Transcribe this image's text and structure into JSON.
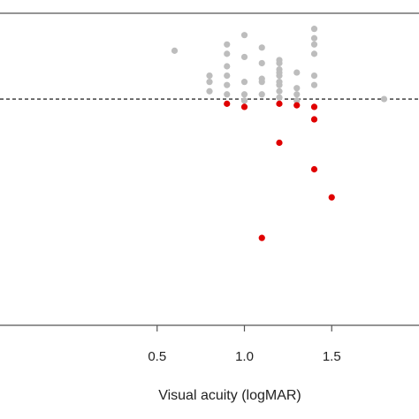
{
  "chart_data": {
    "type": "scatter",
    "title": "",
    "xlabel": "Visual acuity (logMAR)",
    "ylabel": "",
    "xlim": [
      -0.4,
      2.0
    ],
    "ylim": [
      0,
      1
    ],
    "x_ticks": [
      0.5,
      1.0,
      1.5
    ],
    "x_tick_labels": [
      "0.5",
      "1.0",
      "1.5"
    ],
    "grid": false,
    "threshold": {
      "y": 0.725,
      "style": "dashed"
    },
    "colors": {
      "above": "#bdbdbd",
      "below": "#e00000",
      "line": "#000000"
    },
    "series": [
      {
        "values": [
          [
            0.6,
            0.88
          ],
          [
            0.8,
            0.8
          ],
          [
            0.8,
            0.78
          ],
          [
            0.8,
            0.75
          ],
          [
            0.9,
            0.9
          ],
          [
            0.9,
            0.87
          ],
          [
            0.9,
            0.83
          ],
          [
            0.9,
            0.8
          ],
          [
            0.9,
            0.77
          ],
          [
            0.9,
            0.74
          ],
          [
            1.0,
            0.93
          ],
          [
            1.0,
            0.86
          ],
          [
            1.0,
            0.78
          ],
          [
            1.0,
            0.74
          ],
          [
            1.0,
            0.72
          ],
          [
            1.1,
            0.89
          ],
          [
            1.1,
            0.84
          ],
          [
            1.1,
            0.79
          ],
          [
            1.1,
            0.78
          ],
          [
            1.1,
            0.74
          ],
          [
            1.2,
            0.85
          ],
          [
            1.2,
            0.84
          ],
          [
            1.2,
            0.82
          ],
          [
            1.2,
            0.81
          ],
          [
            1.2,
            0.8
          ],
          [
            1.2,
            0.78
          ],
          [
            1.2,
            0.77
          ],
          [
            1.2,
            0.75
          ],
          [
            1.2,
            0.73
          ],
          [
            1.3,
            0.81
          ],
          [
            1.3,
            0.76
          ],
          [
            1.3,
            0.74
          ],
          [
            1.3,
            0.72
          ],
          [
            1.4,
            0.95
          ],
          [
            1.4,
            0.92
          ],
          [
            1.4,
            0.9
          ],
          [
            1.4,
            0.87
          ],
          [
            1.4,
            0.8
          ],
          [
            1.4,
            0.77
          ],
          [
            1.8,
            0.725
          ]
        ]
      },
      {
        "values": [
          [
            0.9,
            0.71
          ],
          [
            1.0,
            0.7
          ],
          [
            1.2,
            0.71
          ],
          [
            1.3,
            0.705
          ],
          [
            1.4,
            0.7
          ],
          [
            1.4,
            0.66
          ],
          [
            1.2,
            0.585
          ],
          [
            1.4,
            0.5
          ],
          [
            1.5,
            0.41
          ],
          [
            1.1,
            0.28
          ]
        ]
      }
    ]
  }
}
